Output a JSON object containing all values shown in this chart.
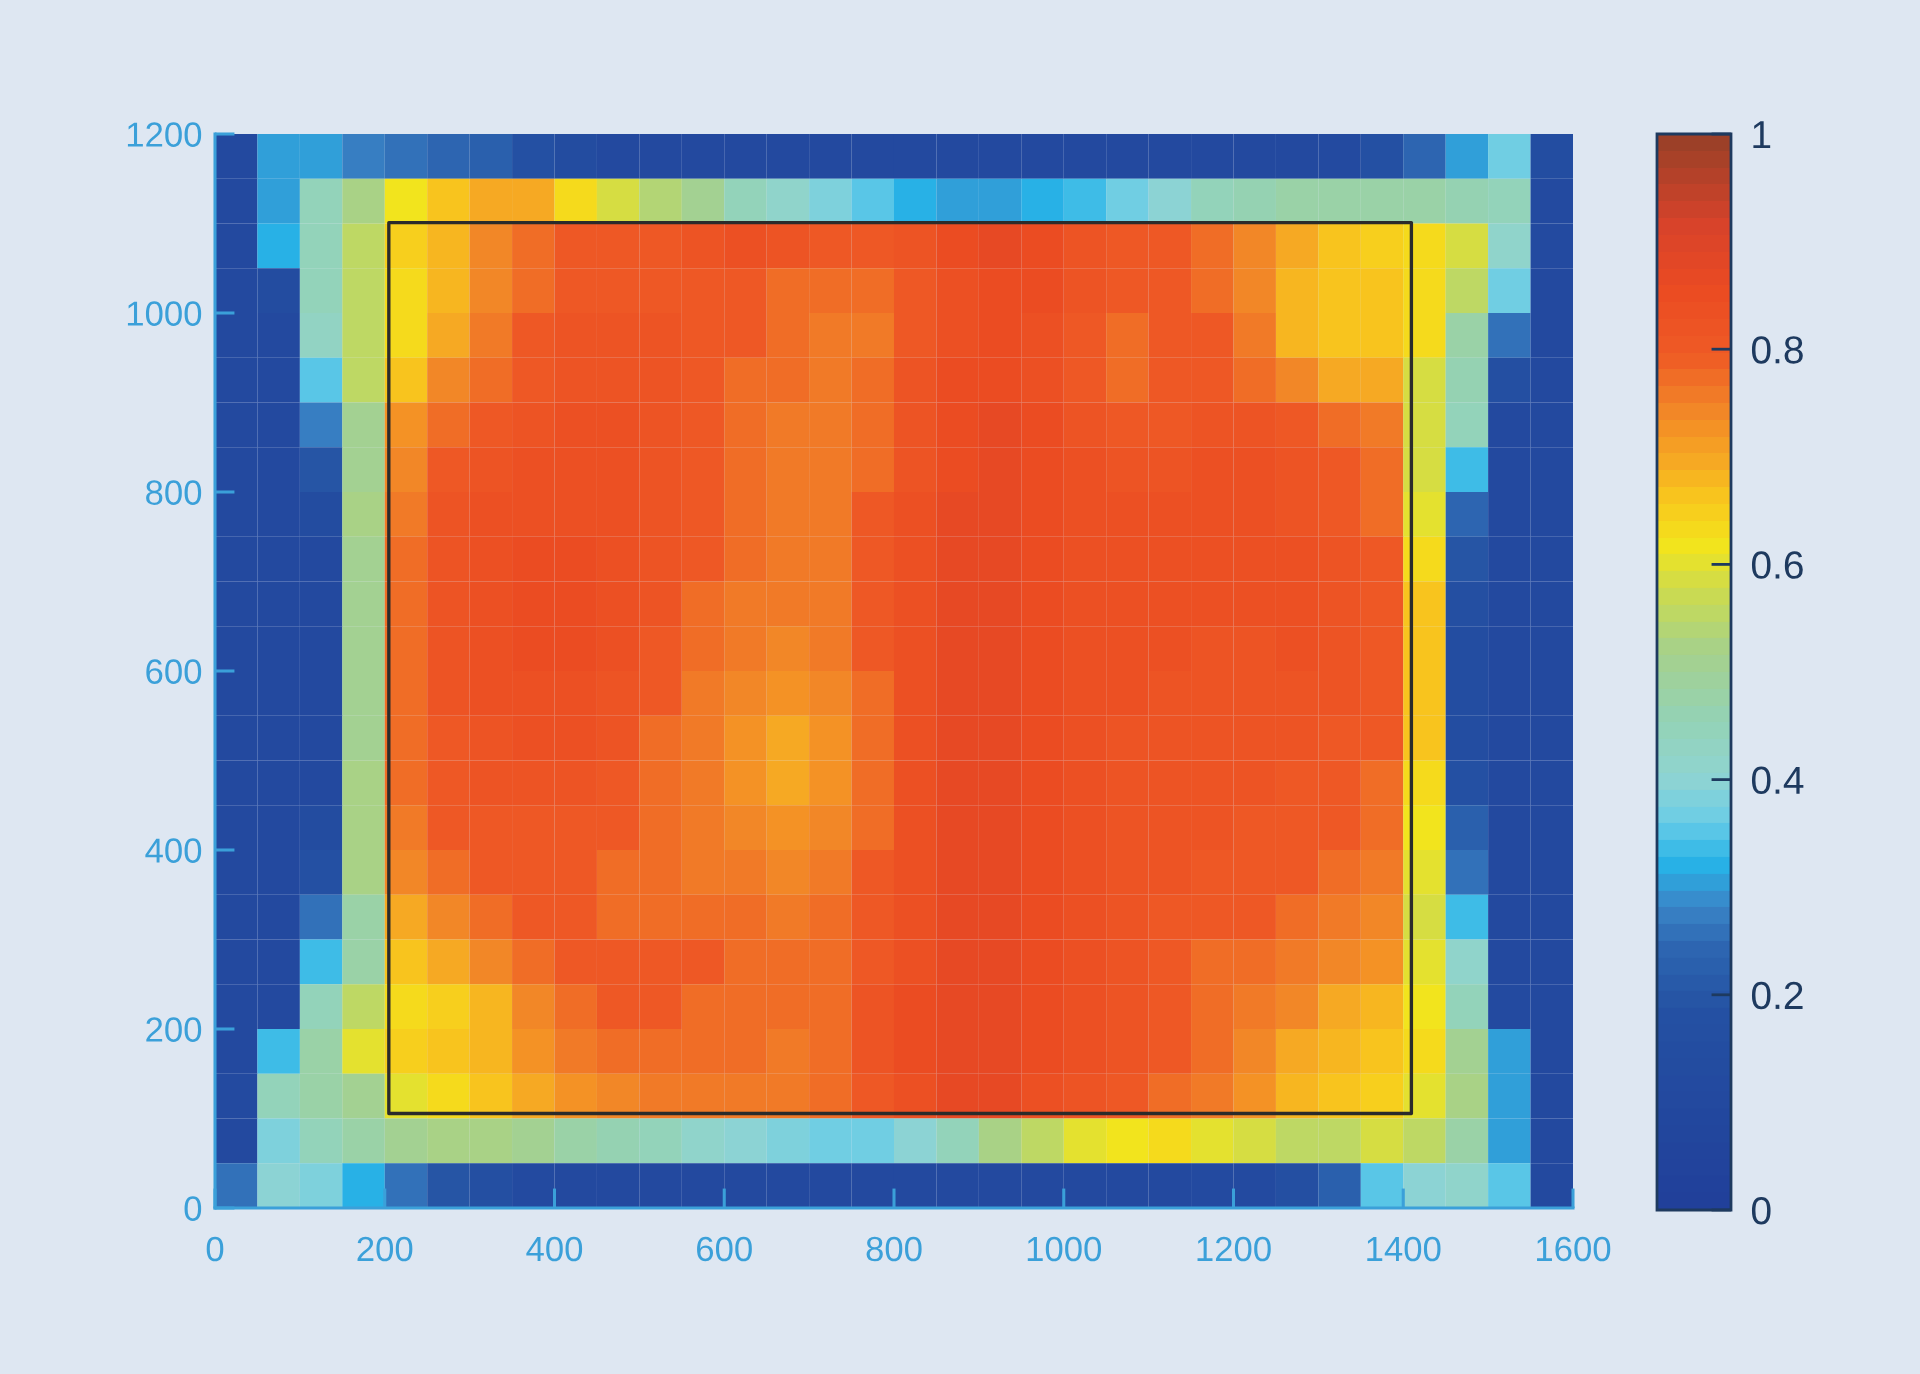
{
  "chart_data": {
    "type": "heatmap",
    "xlim": [
      0,
      1600
    ],
    "xticks": [
      0,
      200,
      400,
      600,
      800,
      1000,
      1200,
      1400,
      1600
    ],
    "ylim": [
      0,
      1200
    ],
    "yticks": [
      0,
      200,
      400,
      600,
      800,
      1000,
      1200
    ],
    "clim": [
      0,
      1
    ],
    "cticks": [
      0,
      0.2,
      0.4,
      0.6,
      0.8,
      1
    ],
    "cells": [
      [
        0.1,
        0.3,
        0.3,
        0.28,
        0.26,
        0.24,
        0.22,
        0.18,
        0.14,
        0.1,
        0.1,
        0.1,
        0.1,
        0.1,
        0.1,
        0.1,
        0.1,
        0.1,
        0.1,
        0.1,
        0.1,
        0.1,
        0.1,
        0.1,
        0.1,
        0.1,
        0.12,
        0.18,
        0.24,
        0.3,
        0.36,
        0.15
      ],
      [
        0.1,
        0.3,
        0.45,
        0.52,
        0.62,
        0.66,
        0.7,
        0.7,
        0.64,
        0.58,
        0.54,
        0.5,
        0.45,
        0.42,
        0.38,
        0.35,
        0.32,
        0.31,
        0.31,
        0.32,
        0.34,
        0.36,
        0.4,
        0.44,
        0.46,
        0.47,
        0.48,
        0.48,
        0.47,
        0.46,
        0.44,
        0.12
      ],
      [
        0.1,
        0.32,
        0.45,
        0.55,
        0.65,
        0.68,
        0.74,
        0.78,
        0.8,
        0.8,
        0.8,
        0.82,
        0.84,
        0.82,
        0.8,
        0.8,
        0.82,
        0.85,
        0.86,
        0.85,
        0.82,
        0.8,
        0.8,
        0.78,
        0.74,
        0.7,
        0.67,
        0.65,
        0.63,
        0.58,
        0.42,
        0.12
      ],
      [
        0.1,
        0.13,
        0.45,
        0.55,
        0.64,
        0.68,
        0.74,
        0.78,
        0.8,
        0.8,
        0.8,
        0.8,
        0.8,
        0.78,
        0.78,
        0.78,
        0.8,
        0.84,
        0.85,
        0.85,
        0.82,
        0.8,
        0.8,
        0.78,
        0.74,
        0.68,
        0.66,
        0.66,
        0.63,
        0.55,
        0.36,
        0.1
      ],
      [
        0.1,
        0.1,
        0.43,
        0.56,
        0.64,
        0.7,
        0.76,
        0.8,
        0.82,
        0.82,
        0.82,
        0.8,
        0.8,
        0.78,
        0.76,
        0.76,
        0.8,
        0.84,
        0.85,
        0.84,
        0.8,
        0.78,
        0.8,
        0.8,
        0.76,
        0.68,
        0.66,
        0.66,
        0.63,
        0.47,
        0.25,
        0.1
      ],
      [
        0.1,
        0.1,
        0.35,
        0.55,
        0.66,
        0.74,
        0.78,
        0.8,
        0.82,
        0.82,
        0.82,
        0.8,
        0.78,
        0.78,
        0.76,
        0.78,
        0.82,
        0.85,
        0.85,
        0.84,
        0.8,
        0.78,
        0.8,
        0.8,
        0.78,
        0.74,
        0.7,
        0.7,
        0.58,
        0.46,
        0.17,
        0.1
      ],
      [
        0.1,
        0.1,
        0.28,
        0.5,
        0.72,
        0.78,
        0.8,
        0.82,
        0.84,
        0.84,
        0.82,
        0.8,
        0.78,
        0.76,
        0.76,
        0.78,
        0.82,
        0.85,
        0.86,
        0.85,
        0.82,
        0.8,
        0.8,
        0.82,
        0.82,
        0.8,
        0.78,
        0.76,
        0.58,
        0.44,
        0.1,
        0.1
      ],
      [
        0.1,
        0.1,
        0.2,
        0.5,
        0.74,
        0.8,
        0.82,
        0.84,
        0.84,
        0.84,
        0.82,
        0.8,
        0.78,
        0.76,
        0.76,
        0.78,
        0.82,
        0.85,
        0.86,
        0.85,
        0.84,
        0.82,
        0.82,
        0.84,
        0.84,
        0.82,
        0.8,
        0.78,
        0.58,
        0.33,
        0.1,
        0.1
      ],
      [
        0.1,
        0.1,
        0.14,
        0.52,
        0.76,
        0.82,
        0.84,
        0.84,
        0.84,
        0.84,
        0.82,
        0.8,
        0.78,
        0.76,
        0.76,
        0.8,
        0.84,
        0.86,
        0.86,
        0.85,
        0.84,
        0.84,
        0.84,
        0.84,
        0.84,
        0.82,
        0.8,
        0.78,
        0.6,
        0.24,
        0.1,
        0.1
      ],
      [
        0.1,
        0.1,
        0.1,
        0.5,
        0.78,
        0.82,
        0.84,
        0.85,
        0.85,
        0.84,
        0.82,
        0.8,
        0.78,
        0.76,
        0.76,
        0.8,
        0.84,
        0.86,
        0.86,
        0.85,
        0.84,
        0.84,
        0.84,
        0.84,
        0.84,
        0.84,
        0.82,
        0.8,
        0.64,
        0.2,
        0.1,
        0.1
      ],
      [
        0.1,
        0.1,
        0.1,
        0.5,
        0.78,
        0.82,
        0.84,
        0.85,
        0.85,
        0.84,
        0.82,
        0.78,
        0.76,
        0.75,
        0.76,
        0.8,
        0.84,
        0.86,
        0.86,
        0.85,
        0.84,
        0.84,
        0.84,
        0.84,
        0.84,
        0.84,
        0.82,
        0.8,
        0.66,
        0.16,
        0.1,
        0.1
      ],
      [
        0.1,
        0.1,
        0.1,
        0.5,
        0.78,
        0.82,
        0.84,
        0.85,
        0.85,
        0.84,
        0.8,
        0.78,
        0.75,
        0.74,
        0.76,
        0.8,
        0.84,
        0.86,
        0.86,
        0.85,
        0.84,
        0.84,
        0.84,
        0.82,
        0.82,
        0.84,
        0.82,
        0.8,
        0.66,
        0.15,
        0.1,
        0.1
      ],
      [
        0.1,
        0.1,
        0.1,
        0.5,
        0.78,
        0.82,
        0.84,
        0.84,
        0.84,
        0.82,
        0.8,
        0.76,
        0.74,
        0.72,
        0.74,
        0.78,
        0.84,
        0.86,
        0.86,
        0.85,
        0.84,
        0.84,
        0.82,
        0.82,
        0.82,
        0.82,
        0.82,
        0.8,
        0.66,
        0.15,
        0.1,
        0.1
      ],
      [
        0.1,
        0.1,
        0.1,
        0.5,
        0.78,
        0.8,
        0.82,
        0.84,
        0.84,
        0.82,
        0.78,
        0.76,
        0.72,
        0.7,
        0.72,
        0.78,
        0.84,
        0.86,
        0.86,
        0.85,
        0.84,
        0.82,
        0.82,
        0.82,
        0.82,
        0.82,
        0.8,
        0.8,
        0.66,
        0.15,
        0.1,
        0.1
      ],
      [
        0.1,
        0.1,
        0.1,
        0.52,
        0.78,
        0.8,
        0.82,
        0.82,
        0.82,
        0.8,
        0.78,
        0.76,
        0.72,
        0.7,
        0.72,
        0.78,
        0.84,
        0.86,
        0.86,
        0.85,
        0.84,
        0.82,
        0.82,
        0.82,
        0.82,
        0.8,
        0.8,
        0.78,
        0.64,
        0.18,
        0.1,
        0.1
      ],
      [
        0.1,
        0.1,
        0.13,
        0.52,
        0.76,
        0.8,
        0.8,
        0.8,
        0.8,
        0.8,
        0.78,
        0.76,
        0.74,
        0.72,
        0.74,
        0.78,
        0.84,
        0.86,
        0.86,
        0.85,
        0.84,
        0.82,
        0.82,
        0.82,
        0.8,
        0.8,
        0.8,
        0.78,
        0.62,
        0.22,
        0.1,
        0.1
      ],
      [
        0.1,
        0.1,
        0.18,
        0.52,
        0.74,
        0.78,
        0.8,
        0.8,
        0.8,
        0.78,
        0.78,
        0.76,
        0.76,
        0.74,
        0.76,
        0.8,
        0.84,
        0.86,
        0.86,
        0.85,
        0.84,
        0.82,
        0.82,
        0.8,
        0.8,
        0.8,
        0.78,
        0.76,
        0.6,
        0.26,
        0.1,
        0.1
      ],
      [
        0.1,
        0.1,
        0.25,
        0.47,
        0.7,
        0.74,
        0.78,
        0.8,
        0.8,
        0.78,
        0.78,
        0.78,
        0.78,
        0.76,
        0.78,
        0.8,
        0.84,
        0.86,
        0.86,
        0.85,
        0.84,
        0.82,
        0.8,
        0.8,
        0.8,
        0.78,
        0.76,
        0.74,
        0.58,
        0.33,
        0.1,
        0.1
      ],
      [
        0.1,
        0.1,
        0.33,
        0.48,
        0.66,
        0.7,
        0.74,
        0.78,
        0.8,
        0.8,
        0.8,
        0.8,
        0.78,
        0.78,
        0.78,
        0.8,
        0.84,
        0.86,
        0.86,
        0.85,
        0.84,
        0.82,
        0.8,
        0.78,
        0.78,
        0.76,
        0.74,
        0.72,
        0.6,
        0.42,
        0.1,
        0.1
      ],
      [
        0.1,
        0.1,
        0.45,
        0.55,
        0.63,
        0.65,
        0.68,
        0.74,
        0.78,
        0.8,
        0.8,
        0.78,
        0.78,
        0.78,
        0.78,
        0.82,
        0.85,
        0.86,
        0.86,
        0.85,
        0.84,
        0.82,
        0.8,
        0.78,
        0.76,
        0.74,
        0.7,
        0.68,
        0.62,
        0.45,
        0.12,
        0.1
      ],
      [
        0.1,
        0.33,
        0.47,
        0.6,
        0.65,
        0.66,
        0.68,
        0.72,
        0.76,
        0.78,
        0.78,
        0.78,
        0.78,
        0.76,
        0.78,
        0.82,
        0.85,
        0.86,
        0.86,
        0.85,
        0.84,
        0.82,
        0.8,
        0.78,
        0.74,
        0.7,
        0.68,
        0.66,
        0.63,
        0.5,
        0.3,
        0.1
      ],
      [
        0.12,
        0.45,
        0.47,
        0.5,
        0.6,
        0.64,
        0.66,
        0.7,
        0.72,
        0.74,
        0.76,
        0.76,
        0.76,
        0.76,
        0.78,
        0.8,
        0.84,
        0.86,
        0.86,
        0.84,
        0.82,
        0.8,
        0.78,
        0.76,
        0.72,
        0.68,
        0.66,
        0.65,
        0.6,
        0.52,
        0.3,
        0.1
      ],
      [
        0.1,
        0.38,
        0.45,
        0.47,
        0.5,
        0.52,
        0.52,
        0.5,
        0.47,
        0.46,
        0.44,
        0.42,
        0.4,
        0.38,
        0.37,
        0.37,
        0.4,
        0.45,
        0.52,
        0.56,
        0.6,
        0.62,
        0.63,
        0.6,
        0.58,
        0.55,
        0.55,
        0.58,
        0.55,
        0.48,
        0.3,
        0.1
      ],
      [
        0.25,
        0.4,
        0.38,
        0.32,
        0.25,
        0.2,
        0.17,
        0.12,
        0.1,
        0.1,
        0.1,
        0.1,
        0.1,
        0.1,
        0.1,
        0.1,
        0.1,
        0.1,
        0.1,
        0.1,
        0.1,
        0.1,
        0.1,
        0.11,
        0.12,
        0.17,
        0.22,
        0.35,
        0.4,
        0.42,
        0.35,
        0.1
      ]
    ]
  }
}
